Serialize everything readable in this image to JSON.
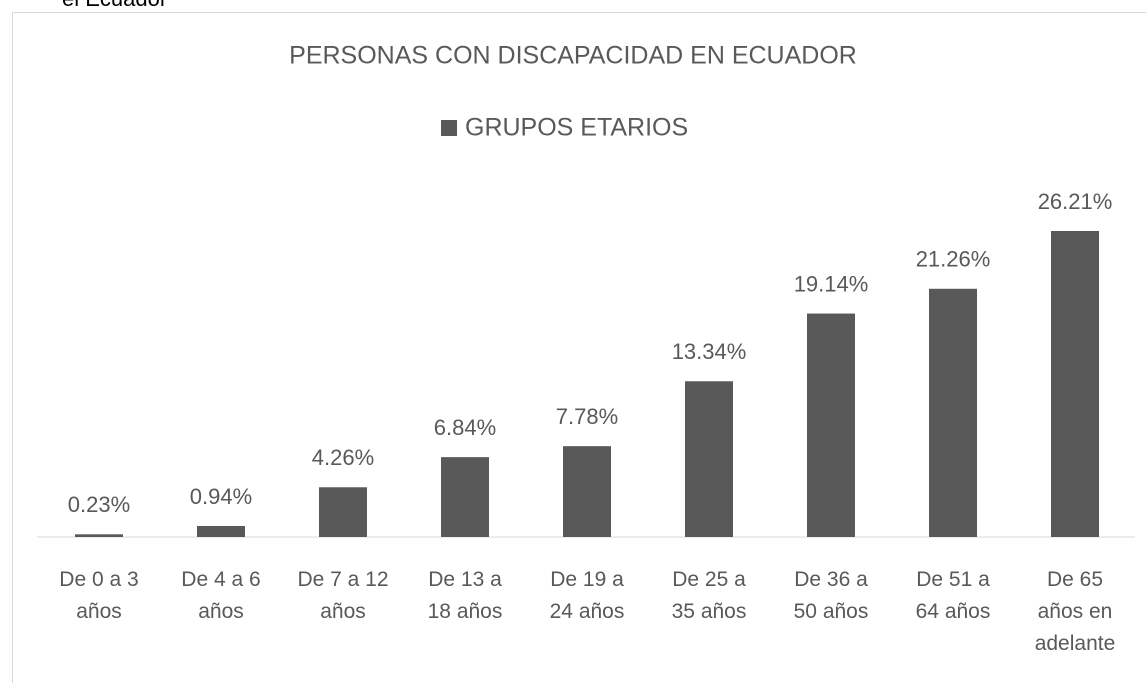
{
  "caption": "el Ecuador",
  "chart_data": {
    "type": "bar",
    "title": "PERSONAS CON DISCAPACIDAD EN ECUADOR",
    "categories": [
      "De 0 a 3\naños",
      "De 4 a 6\naños",
      "De 7 a 12\naños",
      "De 13 a\n18 años",
      "De 19 a\n24 años",
      "De 25 a\n35 años",
      "De 36 a\n50 años",
      "De 51 a\n64 años",
      "De 65\naños en\nadelante"
    ],
    "series": [
      {
        "name": "GRUPOS ETARIOS",
        "color": "#595959",
        "values": [
          0.23,
          0.94,
          4.26,
          6.84,
          7.78,
          13.34,
          19.14,
          21.26,
          26.21
        ],
        "value_labels": [
          "0.23%",
          "0.94%",
          "4.26%",
          "6.84%",
          "7.78%",
          "13.34%",
          "19.14%",
          "21.26%",
          "26.21%"
        ]
      }
    ],
    "legend": "top"
  }
}
